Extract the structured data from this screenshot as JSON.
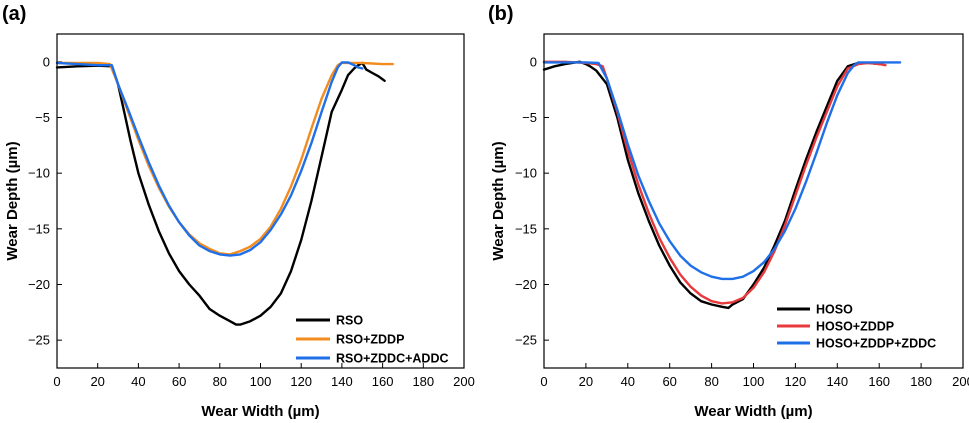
{
  "chart_data": [
    {
      "type": "line",
      "panel_label": "(a)",
      "xlabel": "Wear Width (µm)",
      "ylabel": "Wear Depth (µm)",
      "xlim": [
        0,
        200
      ],
      "ylim": [
        -27.5,
        2.5
      ],
      "xticks": [
        0,
        20,
        40,
        60,
        80,
        100,
        120,
        140,
        160,
        180,
        200
      ],
      "yticks": [
        0,
        -5,
        -10,
        -15,
        -20,
        -25
      ],
      "legend_position": "bottom-right",
      "series": [
        {
          "name": "RSO",
          "color": "#000000",
          "x": [
            0,
            10,
            20,
            27,
            30,
            33,
            36,
            40,
            45,
            50,
            55,
            60,
            65,
            70,
            75,
            80,
            85,
            88,
            90,
            95,
            100,
            105,
            110,
            115,
            120,
            125,
            130,
            135,
            140,
            143,
            146,
            148,
            150,
            152,
            155,
            158,
            161
          ],
          "y": [
            -0.5,
            -0.4,
            -0.35,
            -0.4,
            -2.0,
            -4.5,
            -7.0,
            -10.0,
            -12.8,
            -15.2,
            -17.2,
            -18.8,
            -20.0,
            -21.0,
            -22.2,
            -22.8,
            -23.3,
            -23.6,
            -23.6,
            -23.3,
            -22.8,
            -22.0,
            -20.8,
            -18.8,
            -16.0,
            -12.5,
            -8.5,
            -4.5,
            -2.5,
            -1.2,
            -0.6,
            -0.3,
            -0.1,
            -0.7,
            -1.0,
            -1.3,
            -1.7
          ]
        },
        {
          "name": "RSO+ZDDP",
          "color": "#F28C1E",
          "x": [
            0,
            10,
            20,
            26,
            30,
            35,
            40,
            45,
            50,
            55,
            60,
            65,
            70,
            75,
            80,
            85,
            90,
            95,
            100,
            105,
            110,
            115,
            120,
            125,
            130,
            135,
            138,
            140,
            145,
            150,
            155,
            160,
            165
          ],
          "y": [
            -0.1,
            -0.1,
            -0.1,
            -0.2,
            -2.0,
            -4.5,
            -7.0,
            -9.3,
            -11.3,
            -13.0,
            -14.4,
            -15.5,
            -16.3,
            -16.8,
            -17.2,
            -17.3,
            -17.0,
            -16.6,
            -15.9,
            -14.8,
            -13.2,
            -11.2,
            -8.8,
            -6.0,
            -3.3,
            -1.2,
            -0.3,
            -0.1,
            -0.1,
            -0.1,
            -0.15,
            -0.2,
            -0.2
          ]
        },
        {
          "name": "RSO+ZDDC+ADDC",
          "color": "#1E6FE8",
          "x": [
            0,
            10,
            20,
            27,
            30,
            35,
            40,
            45,
            50,
            55,
            60,
            65,
            70,
            75,
            80,
            85,
            90,
            95,
            100,
            105,
            110,
            115,
            120,
            125,
            130,
            135,
            138,
            140,
            143,
            146,
            148,
            150
          ],
          "y": [
            -0.1,
            -0.2,
            -0.3,
            -0.3,
            -2.0,
            -4.3,
            -6.7,
            -9.0,
            -11.1,
            -12.9,
            -14.4,
            -15.6,
            -16.5,
            -17.0,
            -17.3,
            -17.4,
            -17.3,
            -16.9,
            -16.2,
            -15.1,
            -13.7,
            -12.0,
            -9.8,
            -7.3,
            -4.5,
            -1.8,
            -0.5,
            -0.05,
            -0.05,
            -0.3,
            -0.5,
            -0.6
          ]
        }
      ]
    },
    {
      "type": "line",
      "panel_label": "(b)",
      "xlabel": "Wear Width (µm)",
      "ylabel": "Wear Depth (µm)",
      "xlim": [
        0,
        200
      ],
      "ylim": [
        -27.5,
        2.5
      ],
      "xticks": [
        0,
        20,
        40,
        60,
        80,
        100,
        120,
        140,
        160,
        180,
        200
      ],
      "yticks": [
        0,
        -5,
        -10,
        -15,
        -20,
        -25
      ],
      "legend_position": "bottom-right",
      "series": [
        {
          "name": "HOSO",
          "color": "#000000",
          "x": [
            0,
            5,
            10,
            15,
            17,
            20,
            22,
            25,
            30,
            35,
            40,
            45,
            50,
            55,
            60,
            65,
            70,
            75,
            80,
            85,
            88,
            90,
            95,
            100,
            105,
            110,
            115,
            120,
            125,
            130,
            135,
            140,
            145,
            150,
            155,
            160
          ],
          "y": [
            -0.7,
            -0.4,
            -0.2,
            -0.05,
            0.0,
            -0.2,
            -0.4,
            -0.8,
            -2.0,
            -5.0,
            -8.8,
            -11.8,
            -14.3,
            -16.5,
            -18.3,
            -19.8,
            -20.8,
            -21.5,
            -21.8,
            -22.0,
            -22.1,
            -21.8,
            -21.3,
            -20.0,
            -18.5,
            -16.5,
            -14.3,
            -11.5,
            -8.8,
            -6.3,
            -4.0,
            -1.7,
            -0.4,
            -0.1,
            -0.1,
            -0.2
          ]
        },
        {
          "name": "HOSO+ZDDP",
          "color": "#E8393C",
          "x": [
            0,
            10,
            20,
            25,
            28,
            30,
            35,
            40,
            45,
            50,
            55,
            60,
            65,
            70,
            75,
            80,
            85,
            90,
            95,
            100,
            105,
            110,
            115,
            120,
            125,
            130,
            135,
            140,
            145,
            150,
            155,
            160,
            163
          ],
          "y": [
            0.0,
            0.0,
            -0.1,
            -0.2,
            -0.4,
            -1.5,
            -4.5,
            -8.0,
            -11.0,
            -13.6,
            -15.8,
            -17.6,
            -19.1,
            -20.2,
            -21.0,
            -21.5,
            -21.7,
            -21.6,
            -21.2,
            -20.3,
            -18.9,
            -17.0,
            -14.7,
            -12.0,
            -9.3,
            -6.8,
            -4.5,
            -2.2,
            -0.6,
            -0.2,
            -0.1,
            -0.2,
            -0.3
          ]
        },
        {
          "name": "HOSO+ZDDP+ZDDC",
          "color": "#1E6FE8",
          "x": [
            0,
            10,
            20,
            26,
            30,
            35,
            40,
            45,
            50,
            55,
            60,
            65,
            70,
            75,
            80,
            85,
            90,
            95,
            100,
            105,
            110,
            115,
            120,
            125,
            130,
            135,
            140,
            145,
            148,
            150,
            155,
            160,
            165,
            170
          ],
          "y": [
            -0.05,
            -0.05,
            -0.05,
            -0.1,
            -1.5,
            -4.3,
            -7.4,
            -10.2,
            -12.5,
            -14.5,
            -16.1,
            -17.4,
            -18.3,
            -18.9,
            -19.3,
            -19.5,
            -19.5,
            -19.3,
            -18.8,
            -18.0,
            -16.8,
            -15.2,
            -13.2,
            -10.8,
            -8.2,
            -5.5,
            -3.0,
            -1.0,
            -0.3,
            -0.05,
            -0.05,
            -0.05,
            -0.05,
            -0.05
          ]
        }
      ]
    }
  ]
}
